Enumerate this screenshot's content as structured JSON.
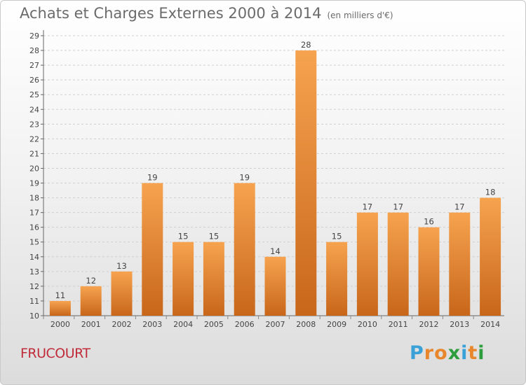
{
  "header": {
    "title": "Achats et Charges Externes 2000 à 2014",
    "subtitle": "(en milliers d'€)"
  },
  "footer": {
    "town": "FRUCOURT",
    "logo_text": "Proxiti"
  },
  "chart_data": {
    "type": "bar",
    "categories": [
      "2000",
      "2001",
      "2002",
      "2003",
      "2004",
      "2005",
      "2006",
      "2007",
      "2008",
      "2009",
      "2010",
      "2011",
      "2012",
      "2013",
      "2014"
    ],
    "values": [
      11,
      12,
      13,
      19,
      15,
      15,
      19,
      14,
      28,
      15,
      17,
      17,
      16,
      17,
      18
    ],
    "ylim": [
      10,
      29
    ],
    "yticks": [
      10,
      11,
      12,
      13,
      14,
      15,
      16,
      17,
      18,
      19,
      20,
      21,
      22,
      23,
      24,
      25,
      26,
      27,
      28,
      29
    ],
    "grid": true,
    "colors": {
      "bar_light": "#f6a34f",
      "bar_dark": "#c8661a",
      "text": "#444444"
    }
  }
}
